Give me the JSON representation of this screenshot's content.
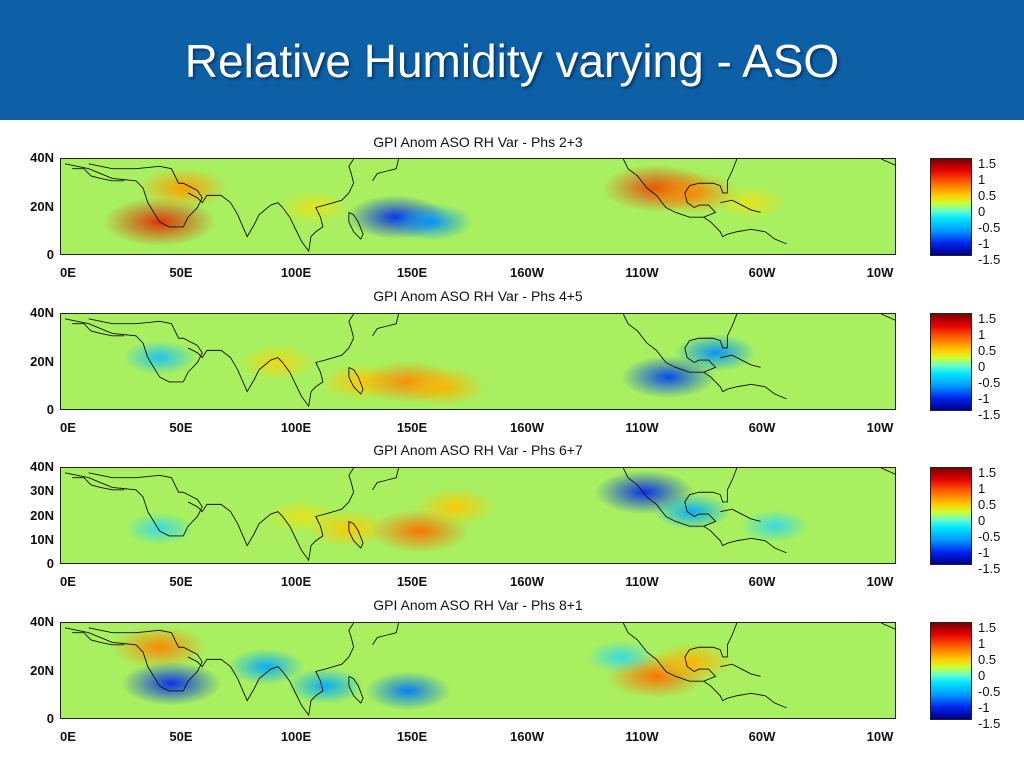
{
  "slide": {
    "title": "Relative Humidity varying - ASO"
  },
  "colorbar_labels": [
    "1.5",
    "1",
    "0.5",
    "0",
    "-0.5",
    "-1",
    "-1.5"
  ],
  "colors": {
    "header": "#0d5fa6",
    "land": "#a8f060"
  },
  "chart_data": [
    {
      "type": "heatmap",
      "title": "GPI Anom ASO RH Var - Phs 2+3",
      "x_ticks": [
        "0E",
        "50E",
        "100E",
        "150E",
        "160W",
        "110W",
        "60W",
        "10W"
      ],
      "y_ticks": [
        "40N",
        "20N",
        "0"
      ],
      "colorbar_ticks": [
        1.5,
        1,
        0.5,
        0,
        -0.5,
        -1,
        -1.5
      ],
      "anomalies": [
        {
          "lon": 40,
          "lat": 14,
          "value": 1.3
        },
        {
          "lon": 50,
          "lat": 28,
          "value": 0.8
        },
        {
          "lon": 105,
          "lat": 20,
          "value": 0.4
        },
        {
          "lon": 140,
          "lat": 16,
          "value": -1.0
        },
        {
          "lon": 155,
          "lat": 14,
          "value": -0.6
        },
        {
          "lon": 250,
          "lat": 28,
          "value": 1.2
        },
        {
          "lon": 265,
          "lat": 26,
          "value": 0.9
        },
        {
          "lon": 290,
          "lat": 22,
          "value": 0.4
        }
      ]
    },
    {
      "type": "heatmap",
      "title": "GPI Anom ASO RH Var - Phs 4+5",
      "x_ticks": [
        "0E",
        "50E",
        "100E",
        "150E",
        "160W",
        "110W",
        "60W",
        "10W"
      ],
      "y_ticks": [
        "40N",
        "20N",
        "0"
      ],
      "colorbar_ticks": [
        1.5,
        1,
        0.5,
        0,
        -0.5,
        -1,
        -1.5
      ],
      "anomalies": [
        {
          "lon": 40,
          "lat": 22,
          "value": -0.4
        },
        {
          "lon": 90,
          "lat": 20,
          "value": 0.5
        },
        {
          "lon": 125,
          "lat": 12,
          "value": 0.6
        },
        {
          "lon": 145,
          "lat": 12,
          "value": 0.9
        },
        {
          "lon": 160,
          "lat": 10,
          "value": 0.7
        },
        {
          "lon": 255,
          "lat": 14,
          "value": -0.9
        },
        {
          "lon": 275,
          "lat": 24,
          "value": -0.6
        }
      ]
    },
    {
      "type": "heatmap",
      "title": "GPI Anom ASO RH Var - Phs 6+7",
      "x_ticks": [
        "0E",
        "50E",
        "100E",
        "150E",
        "160W",
        "110W",
        "60W",
        "10W"
      ],
      "y_ticks": [
        "40N",
        "30N",
        "20N",
        "10N",
        "0"
      ],
      "colorbar_ticks": [
        1.5,
        1,
        0.5,
        0,
        -0.5,
        -1,
        -1.5
      ],
      "anomalies": [
        {
          "lon": 40,
          "lat": 15,
          "value": -0.3
        },
        {
          "lon": 100,
          "lat": 20,
          "value": 0.4
        },
        {
          "lon": 120,
          "lat": 15,
          "value": 0.6
        },
        {
          "lon": 150,
          "lat": 14,
          "value": 1.0
        },
        {
          "lon": 165,
          "lat": 24,
          "value": 0.6
        },
        {
          "lon": 245,
          "lat": 30,
          "value": -1.0
        },
        {
          "lon": 265,
          "lat": 22,
          "value": -0.5
        },
        {
          "lon": 300,
          "lat": 16,
          "value": -0.3
        }
      ]
    },
    {
      "type": "heatmap",
      "title": "GPI Anom ASO RH Var - Phs 8+1",
      "x_ticks": [
        "0E",
        "50E",
        "100E",
        "150E",
        "160W",
        "110W",
        "60W",
        "10W"
      ],
      "y_ticks": [
        "40N",
        "20N",
        "0"
      ],
      "colorbar_ticks": [
        1.5,
        1,
        0.5,
        0,
        -0.5,
        -1,
        -1.5
      ],
      "anomalies": [
        {
          "lon": 40,
          "lat": 30,
          "value": 0.9
        },
        {
          "lon": 45,
          "lat": 15,
          "value": -1.0
        },
        {
          "lon": 85,
          "lat": 22,
          "value": -0.5
        },
        {
          "lon": 110,
          "lat": 14,
          "value": -0.5
        },
        {
          "lon": 145,
          "lat": 12,
          "value": -0.7
        },
        {
          "lon": 250,
          "lat": 18,
          "value": 1.0
        },
        {
          "lon": 265,
          "lat": 24,
          "value": 0.7
        },
        {
          "lon": 235,
          "lat": 26,
          "value": -0.3
        }
      ]
    }
  ]
}
